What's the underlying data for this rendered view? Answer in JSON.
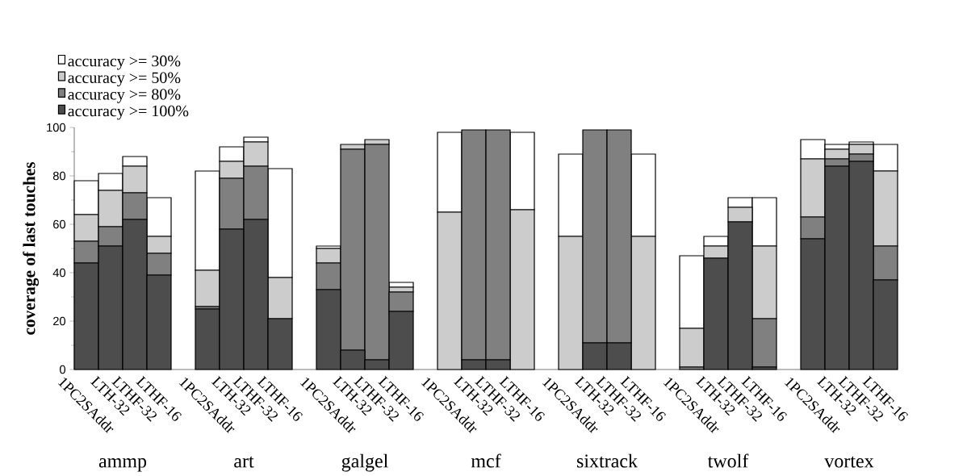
{
  "chart_data": {
    "type": "bar",
    "stacked": true,
    "ylabel": "coverage of last touches",
    "categories": [
      "1PC2SAddr",
      "LTH-32",
      "LTHF-32",
      "LTHF-16",
      null,
      "1PC2SAddr",
      "LTH-32",
      "LTHF-32",
      "LTHF-16",
      null,
      "1PC2SAddr",
      "LTH-32",
      "LTHF-32",
      "LTHF-16",
      null,
      "1PC2SAddr",
      "LTH-32",
      "LTHF-32",
      "LTHF-16",
      null,
      "1PC2SAddr",
      "LTH-32",
      "LTHF-32",
      "LTHF-16",
      null,
      "1PC2SAddr",
      "LTH-32",
      "LTHF-32",
      "LTHF-16",
      null,
      "1PC2SAddr",
      "LTH-32",
      "LTHF-32",
      "LTHF-16"
    ],
    "annotations": [
      "ammp",
      "art",
      "galgel",
      "mcf",
      "sixtrack",
      "twolf",
      "vortex"
    ],
    "series": [
      {
        "name": "accuracy >= 100%",
        "color": "#4d4d4d",
        "values": [
          44,
          51,
          62,
          39,
          null,
          25,
          58,
          62,
          21,
          null,
          33,
          8,
          4,
          24,
          null,
          0,
          4,
          4,
          0,
          null,
          0,
          11,
          11,
          0,
          null,
          0,
          46,
          61,
          1,
          null,
          54,
          84,
          86,
          37
        ]
      },
      {
        "name": "accuracy >= 80%",
        "color": "#808080",
        "values": [
          9,
          8,
          11,
          9,
          null,
          1,
          21,
          22,
          0,
          null,
          11,
          83,
          89,
          8,
          null,
          0,
          95,
          95,
          0,
          null,
          0,
          88,
          88,
          0,
          null,
          1,
          0,
          0,
          20,
          null,
          9,
          3,
          3,
          14
        ]
      },
      {
        "name": "accuracy >= 50%",
        "color": "#cccccc",
        "values": [
          11,
          15,
          11,
          7,
          null,
          15,
          7,
          10,
          17,
          null,
          6,
          2,
          2,
          2,
          null,
          65,
          0,
          0,
          66,
          null,
          55,
          0,
          0,
          55,
          null,
          16,
          5,
          6,
          30,
          null,
          24,
          4,
          4,
          31
        ]
      },
      {
        "name": "accuracy >= 30%",
        "color": "#ffffff",
        "values": [
          14,
          7,
          4,
          16,
          null,
          41,
          6,
          2,
          45,
          null,
          1,
          0,
          0,
          2,
          null,
          33,
          0,
          0,
          32,
          null,
          34,
          0,
          0,
          34,
          null,
          30,
          4,
          4,
          20,
          null,
          8,
          2,
          1,
          11
        ]
      }
    ],
    "ylim": [
      0,
      100
    ],
    "yticks": [
      0,
      20,
      40,
      60,
      80,
      100
    ],
    "legend": "top left"
  }
}
